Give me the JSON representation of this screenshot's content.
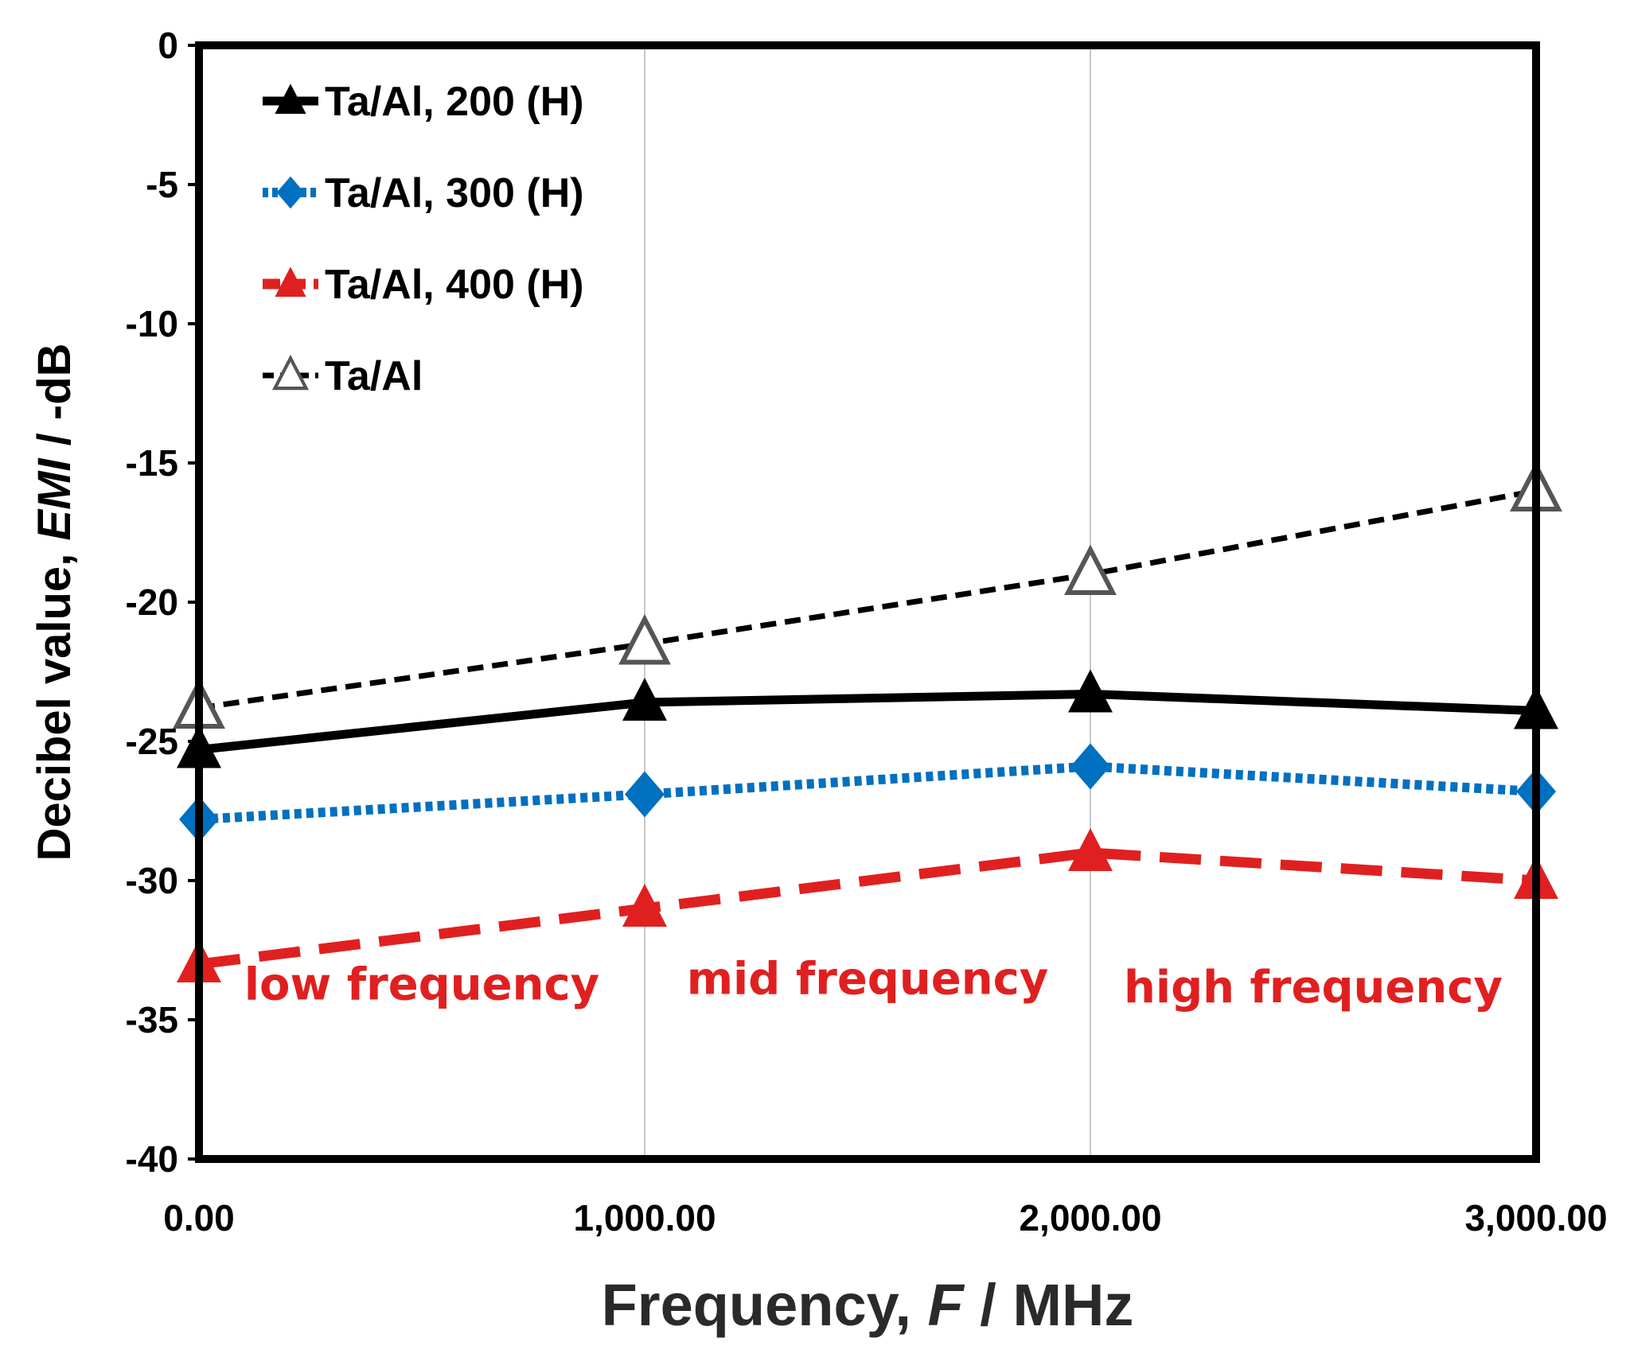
{
  "chart_data": {
    "type": "line",
    "title": "",
    "xlabel": {
      "prefix": "Frequency, ",
      "symbol": "F",
      "suffix": " / MHz"
    },
    "ylabel": {
      "prefix": "Decibel value, ",
      "symbol": "EMI",
      "suffix": " / -dB"
    },
    "x": [
      0,
      1000,
      2000,
      3000
    ],
    "xlim": [
      0,
      3000
    ],
    "ylim": [
      -40,
      0
    ],
    "x_ticks": [
      "0.00",
      "1,000.00",
      "2,000.00",
      "3,000.00"
    ],
    "y_ticks": [
      "0",
      "-5",
      "-10",
      "-15",
      "-20",
      "-25",
      "-30",
      "-35",
      "-40"
    ],
    "y_tick_values": [
      0,
      -5,
      -10,
      -15,
      -20,
      -25,
      -30,
      -35,
      -40
    ],
    "grid": "vertical",
    "legend_position": "top-left",
    "series": [
      {
        "name": "Ta/Al, 200 (H)",
        "values": [
          -25.3,
          -23.6,
          -23.3,
          -23.9
        ],
        "color": "#000000",
        "line": "solid",
        "marker": "filled-triangle"
      },
      {
        "name": "Ta/Al, 300 (H)",
        "values": [
          -27.8,
          -26.9,
          -25.9,
          -26.8
        ],
        "color": "#0070c0",
        "line": "dotted",
        "marker": "diamond"
      },
      {
        "name": "Ta/Al, 400 (H)",
        "values": [
          -33.0,
          -31.0,
          -29.0,
          -30.0
        ],
        "color": "#e02020",
        "line": "dashed",
        "marker": "filled-triangle"
      },
      {
        "name": "Ta/Al",
        "values": [
          -23.8,
          -21.5,
          -19.0,
          -16.0
        ],
        "color": "#000000",
        "line": "short-dash",
        "marker": "open-triangle"
      }
    ],
    "annotations": [
      {
        "text": "low frequency",
        "x": 500,
        "y": -33.7,
        "color": "#e02020"
      },
      {
        "text": "mid frequency",
        "x": 1500,
        "y": -33.5,
        "color": "#e02020"
      },
      {
        "text": "high frequency",
        "x": 2500,
        "y": -33.8,
        "color": "#e02020"
      }
    ]
  }
}
